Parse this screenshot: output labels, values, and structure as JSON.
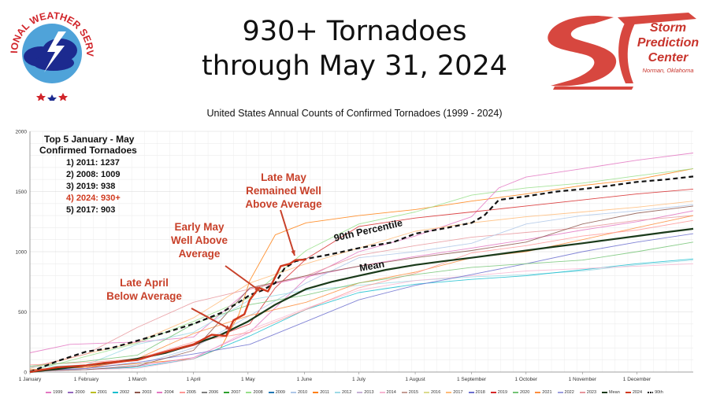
{
  "header": {
    "title_line1": "930+ Tornadoes",
    "title_line2": "through May 31, 2024",
    "nws_logo_text": "NATIONAL WEATHER SERVICE",
    "spc_line1": "Storm",
    "spc_line2": "Prediction",
    "spc_line3": "Center",
    "spc_location": "Norman, Oklahoma"
  },
  "chart_data": {
    "type": "line",
    "title": "United States Annual Counts of Confirmed Tornadoes (1999 - 2024)",
    "ylim": [
      0,
      2000
    ],
    "yticks": [
      "0",
      "500",
      "1000",
      "1500",
      "2000"
    ],
    "x_ticks": [
      "1 January",
      "1 February",
      "1 March",
      "1 April",
      "1 May",
      "1 June",
      "1 July",
      "1 August",
      "1 September",
      "1 October",
      "1 November",
      "1 December"
    ],
    "grid": true,
    "legend_position": "bottom",
    "top5_box": {
      "title_line1": "Top 5 January - May",
      "title_line2": "Confirmed Tornadoes",
      "items": [
        "1) 2011: 1237",
        "2) 2008: 1009",
        "3) 2019: 938",
        "4) 2024: 930+",
        "5) 2017: 903"
      ],
      "highlight_index": 3
    },
    "annotations": {
      "late_april": [
        "Late April",
        "Below Average"
      ],
      "early_may": [
        "Early May",
        "Well Above",
        "Average"
      ],
      "late_may": [
        "Late May",
        "Remained Well",
        "Above Average"
      ],
      "percentile_label": "90th Percentile",
      "mean_label": "Mean"
    },
    "legend": [
      "1999",
      "2000",
      "2001",
      "2002",
      "2003",
      "2004",
      "2005",
      "2006",
      "2007",
      "2008",
      "2009",
      "2010",
      "2011",
      "2012",
      "2013",
      "2014",
      "2015",
      "2016",
      "2017",
      "2018",
      "2019",
      "2020",
      "2021",
      "2022",
      "2023",
      "Mean",
      "2024",
      "90th"
    ],
    "legend_colors": [
      "#e377c2",
      "#9467bd",
      "#bcbd22",
      "#17becf",
      "#8c564b",
      "#e377c2",
      "#ff9896",
      "#7f7f7f",
      "#2ca02c",
      "#98df8a",
      "#1f77b4",
      "#aec7e8",
      "#ff7f0e",
      "#9edae5",
      "#c5b0d5",
      "#f7b6d2",
      "#c49c94",
      "#dbdb8d",
      "#ffbb78",
      "#6b6ecf",
      "#d62728",
      "#74c476",
      "#fd8d3c",
      "#9c9ede",
      "#e7969c",
      "#1a3a1a",
      "#d0391e",
      "#111111"
    ],
    "series": [
      {
        "name": "90th",
        "color": "#111111",
        "dash": true,
        "width": 2.2,
        "x": [
          0,
          15,
          31,
          45,
          59,
          75,
          90,
          105,
          115,
          121,
          128,
          135,
          140,
          146,
          152,
          166,
          181,
          200,
          212,
          230,
          243,
          250,
          258,
          273,
          290,
          304,
          320,
          334,
          350,
          365
        ],
        "y": [
          0,
          90,
          170,
          200,
          260,
          330,
          400,
          490,
          580,
          640,
          680,
          740,
          860,
          920,
          940,
          980,
          1030,
          1080,
          1150,
          1200,
          1240,
          1300,
          1430,
          1460,
          1500,
          1520,
          1550,
          1580,
          1600,
          1625
        ]
      },
      {
        "name": "Mean",
        "color": "#1a3a1a",
        "dash": false,
        "width": 2.2,
        "x": [
          0,
          15,
          31,
          45,
          59,
          75,
          90,
          105,
          120,
          135,
          152,
          166,
          181,
          196,
          212,
          227,
          243,
          258,
          273,
          288,
          304,
          319,
          334,
          349,
          365
        ],
        "y": [
          0,
          25,
          55,
          80,
          110,
          160,
          230,
          310,
          420,
          560,
          690,
          750,
          800,
          850,
          890,
          920,
          950,
          980,
          1010,
          1040,
          1070,
          1100,
          1130,
          1160,
          1190
        ]
      },
      {
        "name": "2024",
        "color": "#d0391e",
        "dash": false,
        "width": 2.4,
        "x": [
          0,
          15,
          31,
          40,
          59,
          70,
          90,
          100,
          108,
          112,
          118,
          121,
          126,
          131,
          138,
          143,
          146,
          152
        ],
        "y": [
          0,
          40,
          55,
          75,
          100,
          150,
          230,
          310,
          300,
          430,
          480,
          600,
          700,
          670,
          880,
          900,
          930,
          935
        ]
      },
      {
        "name": "2011",
        "color": "#ff7f0e",
        "dash": false,
        "width": 0.9,
        "x": [
          0,
          31,
          59,
          90,
          105,
          115,
          121,
          135,
          152,
          181,
          212,
          243,
          273,
          304,
          334,
          365
        ],
        "y": [
          20,
          40,
          70,
          110,
          200,
          480,
          760,
          1140,
          1240,
          1300,
          1350,
          1420,
          1480,
          1550,
          1600,
          1690
        ]
      },
      {
        "name": "2008",
        "color": "#98df8a",
        "dash": false,
        "width": 0.9,
        "x": [
          0,
          36,
          59,
          90,
          121,
          152,
          181,
          212,
          243,
          273,
          304,
          334,
          365
        ],
        "y": [
          10,
          150,
          240,
          420,
          620,
          1010,
          1230,
          1330,
          1470,
          1530,
          1570,
          1630,
          1690
        ]
      },
      {
        "name": "2004",
        "color": "#e377c2",
        "dash": false,
        "width": 0.9,
        "x": [
          0,
          31,
          59,
          90,
          121,
          152,
          181,
          212,
          243,
          258,
          273,
          304,
          334,
          365
        ],
        "y": [
          5,
          20,
          50,
          120,
          330,
          780,
          1000,
          1130,
          1290,
          1530,
          1620,
          1690,
          1760,
          1820
        ]
      },
      {
        "name": "2017",
        "color": "#ffbb78",
        "dash": false,
        "width": 0.9,
        "x": [
          0,
          31,
          59,
          90,
          121,
          152,
          181,
          212,
          243,
          273,
          304,
          334,
          365
        ],
        "y": [
          30,
          150,
          250,
          450,
          740,
          900,
          1030,
          1170,
          1240,
          1290,
          1330,
          1370,
          1420
        ]
      },
      {
        "name": "2019",
        "color": "#d62728",
        "dash": false,
        "width": 0.9,
        "x": [
          0,
          31,
          59,
          90,
          121,
          135,
          152,
          181,
          212,
          243,
          273,
          304,
          334,
          365
        ],
        "y": [
          20,
          40,
          100,
          220,
          400,
          700,
          940,
          1210,
          1280,
          1330,
          1380,
          1430,
          1480,
          1520
        ]
      },
      {
        "name": "1999",
        "color": "#e377c2",
        "dash": false,
        "width": 0.9,
        "x": [
          0,
          22,
          59,
          90,
          121,
          152,
          181,
          212,
          243,
          273,
          304,
          334,
          365
        ],
        "y": [
          160,
          230,
          250,
          290,
          690,
          790,
          880,
          960,
          1030,
          1100,
          1180,
          1250,
          1340
        ]
      },
      {
        "name": "2023",
        "color": "#e7969c",
        "dash": false,
        "width": 0.9,
        "x": [
          0,
          31,
          59,
          90,
          121,
          152,
          181,
          212,
          243,
          273,
          304,
          334,
          365
        ],
        "y": [
          40,
          150,
          370,
          580,
          690,
          800,
          970,
          1050,
          1120,
          1160,
          1200,
          1260,
          1300
        ]
      },
      {
        "name": "2010",
        "color": "#aec7e8",
        "dash": false,
        "width": 0.9,
        "x": [
          0,
          31,
          59,
          90,
          121,
          152,
          181,
          212,
          243,
          273,
          304,
          334,
          365
        ],
        "y": [
          20,
          30,
          60,
          200,
          470,
          740,
          950,
          1000,
          1070,
          1230,
          1300,
          1340,
          1390
        ]
      },
      {
        "name": "2012",
        "color": "#9edae5",
        "dash": false,
        "width": 0.9,
        "x": [
          0,
          31,
          59,
          90,
          121,
          152,
          181,
          212,
          243,
          273,
          304,
          334,
          365
        ],
        "y": [
          40,
          60,
          230,
          330,
          600,
          680,
          720,
          760,
          790,
          810,
          840,
          890,
          930
        ]
      },
      {
        "name": "2002",
        "color": "#17becf",
        "dash": false,
        "width": 0.9,
        "x": [
          0,
          31,
          59,
          90,
          121,
          152,
          181,
          212,
          243,
          273,
          304,
          334,
          365
        ],
        "y": [
          10,
          20,
          40,
          110,
          300,
          520,
          660,
          730,
          770,
          800,
          850,
          900,
          940
        ]
      },
      {
        "name": "2014",
        "color": "#f7b6d2",
        "dash": false,
        "width": 0.9,
        "x": [
          0,
          31,
          59,
          90,
          121,
          152,
          181,
          212,
          243,
          273,
          304,
          334,
          365
        ],
        "y": [
          10,
          20,
          30,
          110,
          350,
          530,
          680,
          760,
          800,
          840,
          860,
          880,
          900
        ]
      },
      {
        "name": "2018",
        "color": "#6b6ecf",
        "dash": false,
        "width": 0.9,
        "x": [
          0,
          31,
          59,
          90,
          121,
          152,
          181,
          212,
          243,
          273,
          304,
          334,
          365
        ],
        "y": [
          10,
          30,
          80,
          150,
          230,
          420,
          600,
          720,
          810,
          900,
          1000,
          1080,
          1150
        ]
      },
      {
        "name": "2021",
        "color": "#fd8d3c",
        "dash": false,
        "width": 0.9,
        "x": [
          0,
          31,
          59,
          90,
          121,
          152,
          181,
          212,
          243,
          273,
          304,
          334,
          365
        ],
        "y": [
          20,
          40,
          110,
          320,
          470,
          580,
          740,
          830,
          950,
          1000,
          1100,
          1200,
          1300
        ]
      },
      {
        "name": "2005",
        "color": "#ff9896",
        "dash": false,
        "width": 0.9,
        "x": [
          0,
          31,
          59,
          90,
          121,
          152,
          181,
          212,
          243,
          273,
          304,
          334,
          365
        ],
        "y": [
          60,
          80,
          110,
          250,
          330,
          520,
          700,
          820,
          990,
          1050,
          1130,
          1180,
          1260
        ]
      },
      {
        "name": "2003",
        "color": "#8c564b",
        "dash": false,
        "width": 0.9,
        "x": [
          0,
          31,
          59,
          90,
          121,
          152,
          181,
          212,
          243,
          273,
          304,
          334,
          365
        ],
        "y": [
          10,
          20,
          50,
          180,
          700,
          800,
          880,
          950,
          1010,
          1080,
          1230,
          1320,
          1380
        ]
      },
      {
        "name": "2020",
        "color": "#74c476",
        "dash": false,
        "width": 0.9,
        "x": [
          0,
          31,
          59,
          90,
          121,
          152,
          181,
          212,
          243,
          273,
          304,
          334,
          365
        ],
        "y": [
          50,
          90,
          140,
          400,
          560,
          640,
          740,
          810,
          870,
          900,
          930,
          1000,
          1080
        ]
      }
    ]
  }
}
